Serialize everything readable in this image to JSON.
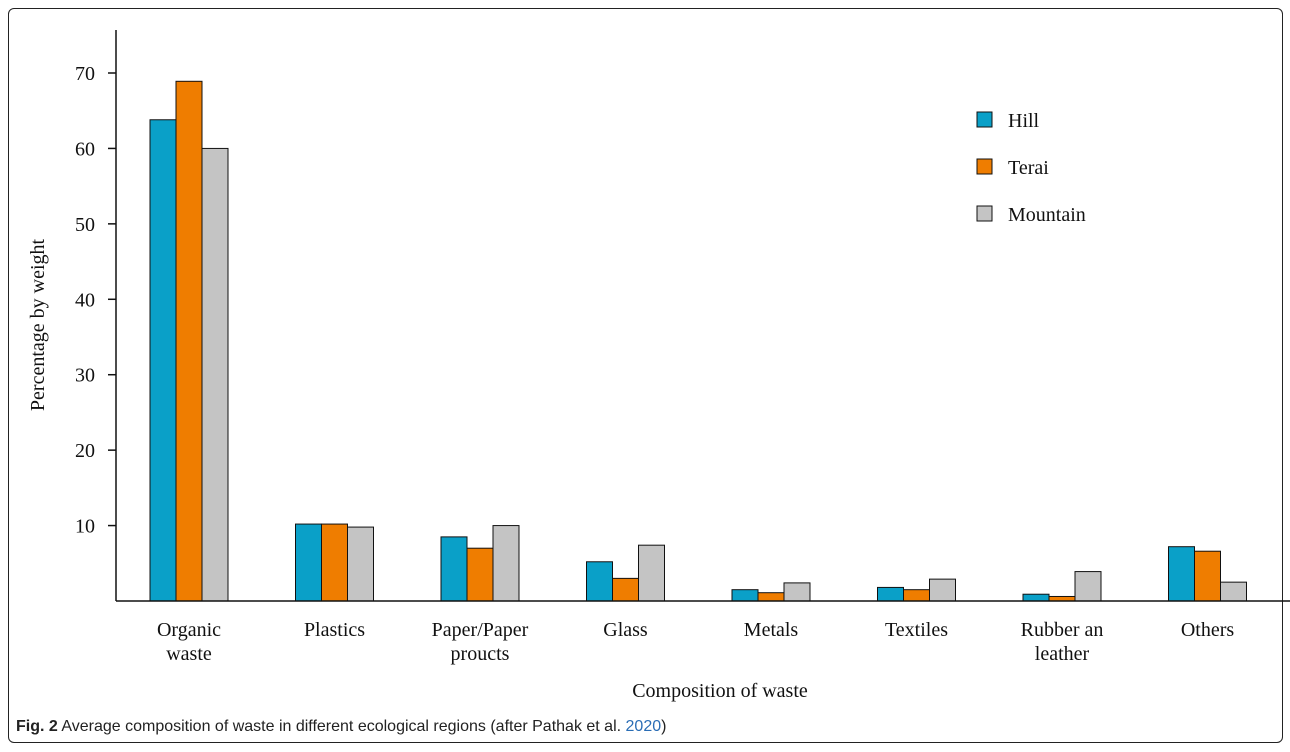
{
  "caption": {
    "label": "Fig. 2",
    "text": " Average composition of waste in different ecological regions (after Pathak et al. ",
    "ref": "2020",
    "close": ")"
  },
  "chart_data": {
    "type": "bar",
    "title": "",
    "xlabel": "Composition of waste",
    "ylabel": "Percentage by weight",
    "ylim": [
      0,
      75
    ],
    "yticks": [
      10,
      20,
      30,
      40,
      50,
      60,
      70
    ],
    "grid": false,
    "legend_position": "top-right",
    "categories": [
      [
        "Organic",
        "waste"
      ],
      [
        "Plastics"
      ],
      [
        "Paper/Paper",
        "proucts"
      ],
      [
        "Glass"
      ],
      [
        "Metals"
      ],
      [
        "Textiles"
      ],
      [
        "Rubber an",
        "leather"
      ],
      [
        "Others"
      ]
    ],
    "series": [
      {
        "name": "Hill",
        "color": "#0aa0c8",
        "values": [
          63.8,
          10.2,
          8.5,
          5.2,
          1.5,
          1.8,
          0.9,
          7.2
        ]
      },
      {
        "name": "Terai",
        "color": "#ef7d00",
        "values": [
          68.9,
          10.2,
          7.0,
          3.0,
          1.1,
          1.5,
          0.6,
          6.6
        ]
      },
      {
        "name": "Mountain",
        "color": "#c4c4c4",
        "values": [
          60.0,
          9.8,
          10.0,
          7.4,
          2.4,
          2.9,
          3.9,
          2.5
        ]
      }
    ]
  }
}
